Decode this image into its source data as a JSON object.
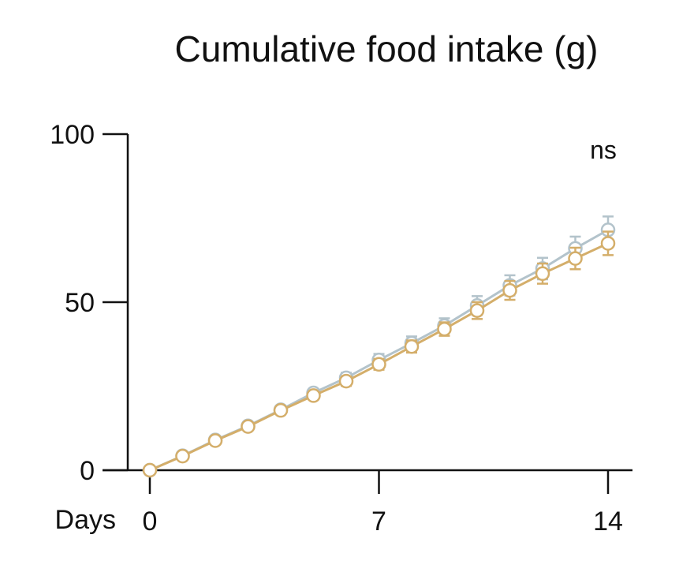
{
  "chart_data": {
    "type": "line",
    "title": "Cumulative food intake (g)",
    "xlabel": "Days",
    "ylabel": "",
    "xlim": [
      0,
      14
    ],
    "ylim": [
      0,
      100
    ],
    "x_ticks": [
      0,
      7,
      14
    ],
    "y_ticks": [
      0,
      50,
      100
    ],
    "annotation": "ns",
    "grid": false,
    "legend": "none",
    "x": [
      0,
      1,
      2,
      3,
      4,
      5,
      6,
      7,
      8,
      9,
      10,
      11,
      12,
      13,
      14
    ],
    "series": [
      {
        "color": "#b3c3cb",
        "values": [
          0,
          4.3,
          9.0,
          13.2,
          18.0,
          23.0,
          27.5,
          32.8,
          37.8,
          43.0,
          49.0,
          55.0,
          60.0,
          66.0,
          71.5
        ],
        "errors": [
          0,
          0.5,
          0.8,
          0.8,
          1.0,
          1.2,
          1.5,
          1.8,
          2.0,
          2.2,
          2.8,
          3.0,
          3.2,
          3.5,
          4.0
        ],
        "marker": "open-circle"
      },
      {
        "color": "#d4ae6a",
        "values": [
          0,
          4.2,
          8.8,
          13.0,
          17.8,
          22.2,
          26.5,
          31.5,
          36.8,
          42.0,
          47.5,
          53.5,
          58.5,
          63.0,
          67.5
        ],
        "errors": [
          0,
          0.5,
          0.8,
          0.8,
          1.0,
          1.2,
          1.4,
          1.6,
          1.8,
          2.0,
          2.5,
          2.8,
          3.0,
          3.2,
          3.5
        ],
        "marker": "open-circle"
      }
    ]
  }
}
